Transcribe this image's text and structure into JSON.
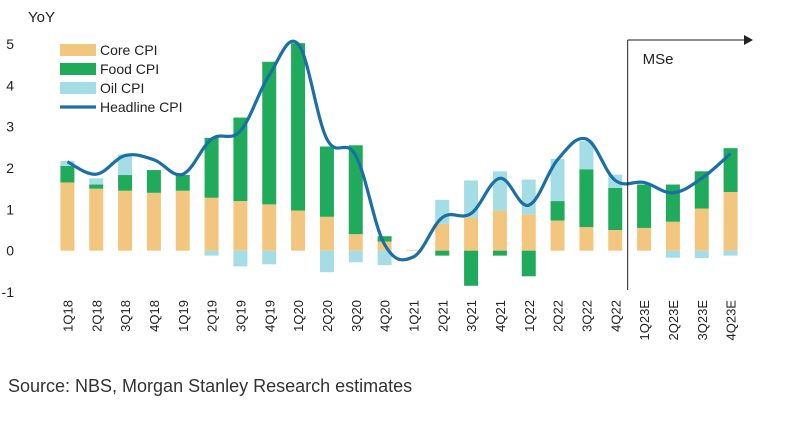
{
  "chart_data": {
    "type": "bar",
    "stacked": true,
    "ylabel": "YoY",
    "ylim": [
      -1,
      5
    ],
    "yticks": [
      "5",
      "4",
      "3",
      "2",
      "1",
      "0",
      "-1"
    ],
    "categories": [
      "1Q18",
      "2Q18",
      "3Q18",
      "4Q18",
      "1Q19",
      "2Q19",
      "3Q19",
      "4Q19",
      "1Q20",
      "2Q20",
      "3Q20",
      "4Q20",
      "1Q21",
      "2Q21",
      "3Q21",
      "4Q21",
      "1Q22",
      "2Q22",
      "3Q22",
      "4Q22",
      "1Q23E",
      "2Q23E",
      "3Q23E",
      "4Q23E"
    ],
    "legend_position": "top-left",
    "grid": false,
    "series": [
      {
        "name": "Core CPI",
        "type": "bar",
        "color": "#f2c67e",
        "values": [
          1.65,
          1.5,
          1.45,
          1.4,
          1.45,
          1.28,
          1.2,
          1.12,
          0.97,
          0.82,
          0.4,
          0.22,
          0.02,
          0.65,
          0.8,
          0.97,
          0.88,
          0.73,
          0.57,
          0.5,
          0.55,
          0.7,
          1.02,
          1.42
        ]
      },
      {
        "name": "Food CPI",
        "type": "bar",
        "color": "#1fab5b",
        "values": [
          0.4,
          0.1,
          0.38,
          0.55,
          0.38,
          1.45,
          2.02,
          3.45,
          4.05,
          1.7,
          2.15,
          0.13,
          0.0,
          -0.12,
          -0.85,
          -0.12,
          -0.62,
          0.47,
          1.4,
          1.02,
          1.05,
          0.9,
          0.9,
          1.06
        ]
      },
      {
        "name": "Oil CPI",
        "type": "bar",
        "color": "#a5dde6",
        "values": [
          0.12,
          0.15,
          0.5,
          0.0,
          0.0,
          -0.12,
          -0.38,
          -0.33,
          0.0,
          -0.52,
          -0.28,
          -0.35,
          0.0,
          0.58,
          0.9,
          0.95,
          0.84,
          1.02,
          0.68,
          0.32,
          0.0,
          -0.17,
          -0.18,
          -0.12
        ]
      },
      {
        "name": "Headline CPI",
        "type": "line",
        "color": "#1a6fa5",
        "values": [
          2.15,
          1.85,
          2.3,
          2.2,
          1.85,
          2.7,
          2.9,
          4.25,
          5.0,
          2.7,
          2.3,
          0.15,
          -0.15,
          0.8,
          0.9,
          1.75,
          1.1,
          2.2,
          2.7,
          1.7,
          1.65,
          1.4,
          1.75,
          2.35
        ]
      }
    ],
    "annotation": {
      "label": "MSe",
      "start_category": "1Q23E"
    }
  },
  "source": "Source: NBS, Morgan Stanley Research estimates"
}
